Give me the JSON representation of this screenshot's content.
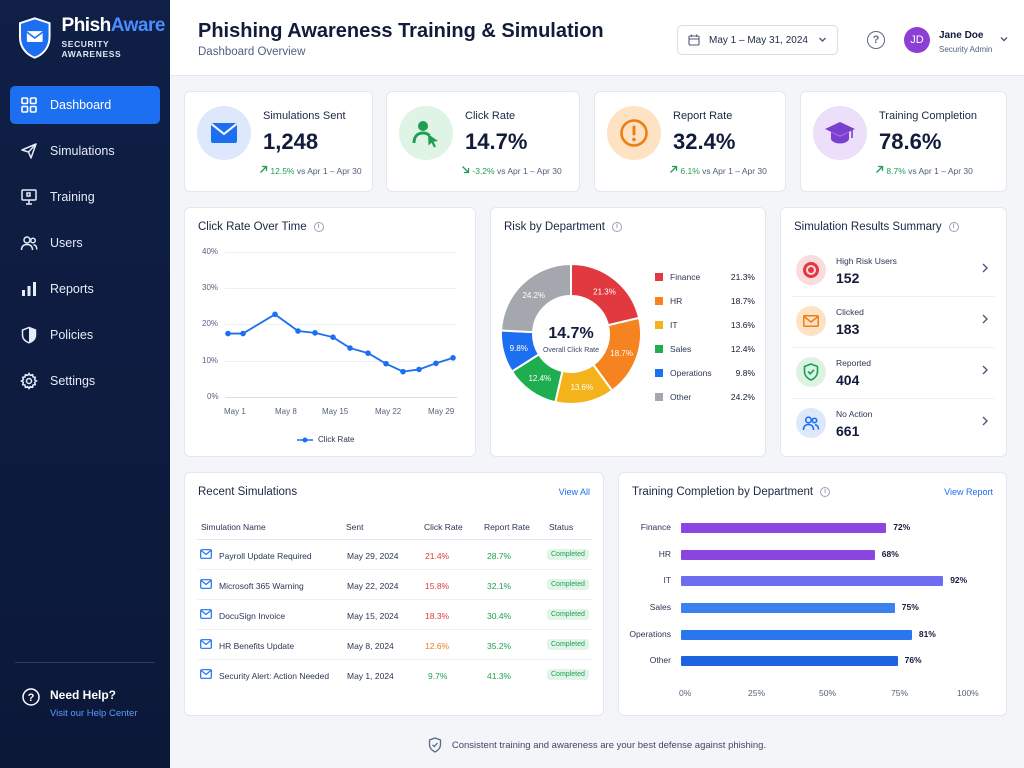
{
  "brand": {
    "name_part1": "Phish",
    "name_part2": "Aware",
    "tagline": "SECURITY AWARENESS",
    "icon": "shield-mail-icon"
  },
  "nav": [
    {
      "label": "Dashboard",
      "icon": "grid-icon",
      "active": true
    },
    {
      "label": "Simulations",
      "icon": "send-icon"
    },
    {
      "label": "Training",
      "icon": "monitor-icon"
    },
    {
      "label": "Users",
      "icon": "users-icon"
    },
    {
      "label": "Reports",
      "icon": "bar-chart-icon"
    },
    {
      "label": "Policies",
      "icon": "shield-icon"
    },
    {
      "label": "Settings",
      "icon": "gear-icon"
    }
  ],
  "help": {
    "title": "Need Help?",
    "link": "Visit our Help Center"
  },
  "header": {
    "title": "Phishing Awareness Training & Simulation",
    "subtitle": "Dashboard Overview",
    "date_range": "May 1 – May 31, 2024"
  },
  "user": {
    "initials": "JD",
    "name": "Jane Doe",
    "role": "Security Admin"
  },
  "kpis": [
    {
      "label": "Simulations Sent",
      "value": "1,248",
      "delta": "12.5%",
      "direction": "up",
      "compare": "vs Apr 1 – Apr 30",
      "icon": "mail-icon",
      "color": "#1d6ff2",
      "bg": "#dde8fb"
    },
    {
      "label": "Click Rate",
      "value": "14.7%",
      "delta": "-3.2%",
      "direction": "down",
      "compare": "vs Apr 1 – Apr 30",
      "icon": "user-click-icon",
      "color": "#1e9e52",
      "bg": "#e0f4e6"
    },
    {
      "label": "Report Rate",
      "value": "32.4%",
      "delta": "6.1%",
      "direction": "up",
      "compare": "vs Apr 1 – Apr 30",
      "icon": "alert-icon",
      "color": "#ee7d14",
      "bg": "#fde3c4"
    },
    {
      "label": "Training Completion",
      "value": "78.6%",
      "delta": "8.7%",
      "direction": "up",
      "compare": "vs Apr 1 – Apr 30",
      "icon": "graduation-cap-icon",
      "color": "#7b3fcf",
      "bg": "#ebdffa"
    }
  ],
  "click_rate_card": {
    "title": "Click Rate Over Time",
    "legend": "Click Rate"
  },
  "risk_card": {
    "title": "Risk by Department",
    "center_value": "14.7%",
    "center_label": "Overall Click Rate"
  },
  "summary": {
    "title": "Simulation Results Summary",
    "rows": [
      {
        "label": "High Risk Users",
        "value": "152",
        "icon": "target-icon",
        "color": "#e2383f",
        "bg": "#fbdcdc"
      },
      {
        "label": "Clicked",
        "value": "183",
        "icon": "mail-icon",
        "color": "#ee7d14",
        "bg": "#fde3c4"
      },
      {
        "label": "Reported",
        "value": "404",
        "icon": "shield-check-icon",
        "color": "#1e9e52",
        "bg": "#dcf3e3"
      },
      {
        "label": "No Action",
        "value": "661",
        "icon": "users-icon",
        "color": "#1d6ff2",
        "bg": "#dde8fb"
      }
    ]
  },
  "recent": {
    "title": "Recent Simulations",
    "view_all": "View All",
    "columns": [
      "Simulation Name",
      "Sent",
      "Click Rate",
      "Report Rate",
      "Status"
    ],
    "rows": [
      {
        "name": "Payroll Update Required",
        "sent": "May 29, 2024",
        "click": "21.4%",
        "report": "28.7%",
        "status": "Completed",
        "click_color": "#e2383f"
      },
      {
        "name": "Microsoft 365 Warning",
        "sent": "May 22, 2024",
        "click": "15.8%",
        "report": "32.1%",
        "status": "Completed",
        "click_color": "#e2383f"
      },
      {
        "name": "DocuSign Invoice",
        "sent": "May 15, 2024",
        "click": "18.3%",
        "report": "30.4%",
        "status": "Completed",
        "click_color": "#e2383f"
      },
      {
        "name": "HR Benefits Update",
        "sent": "May 8, 2024",
        "click": "12.6%",
        "report": "35.2%",
        "status": "Completed",
        "click_color": "#ee7d14"
      },
      {
        "name": "Security Alert: Action Needed",
        "sent": "May 1, 2024",
        "click": "9.7%",
        "report": "41.3%",
        "status": "Completed",
        "click_color": "#1e9e52"
      }
    ]
  },
  "training_card": {
    "title": "Training Completion by Department",
    "link": "View Report"
  },
  "footer": {
    "text": "Consistent training and awareness are your best defense against phishing."
  },
  "chart_data": [
    {
      "type": "line",
      "title": "Click Rate Over Time",
      "series": [
        {
          "name": "Click Rate",
          "values": [
            17.5,
            17.5,
            22.8,
            18.2,
            17.7,
            16.5,
            13.5,
            12.1,
            9.2,
            7.0,
            7.6,
            9.3,
            10.8
          ]
        }
      ],
      "x": [
        "May 1",
        "May 3",
        "May 8",
        "May 11",
        "May 13",
        "May 15",
        "May 17",
        "May 19",
        "May 22",
        "May 24",
        "May 26",
        "May 27",
        "May 29"
      ],
      "x_ticks": [
        "May 1",
        "May 8",
        "May 15",
        "May 22",
        "May 29"
      ],
      "y_ticks": [
        "0%",
        "10%",
        "20%",
        "30%",
        "40%"
      ],
      "ylim": [
        0,
        40
      ],
      "color": "#1d6ff2",
      "grid": true
    },
    {
      "type": "pie",
      "title": "Risk by Department",
      "categories": [
        "Finance",
        "HR",
        "IT",
        "Sales",
        "Operations",
        "Other"
      ],
      "values": [
        21.3,
        18.7,
        13.6,
        12.4,
        9.8,
        24.2
      ],
      "labels": [
        "21.3%",
        "18.7%",
        "13.6%",
        "12.4%",
        "9.8%",
        "24.2%"
      ],
      "colors": [
        "#e2383f",
        "#f58320",
        "#f4b21b",
        "#1fae4f",
        "#1d6ff2",
        "#a4a7ad"
      ]
    },
    {
      "type": "bar",
      "orientation": "horizontal",
      "title": "Training Completion by Department",
      "categories": [
        "Finance",
        "HR",
        "IT",
        "Sales",
        "Operations",
        "Other"
      ],
      "values": [
        72,
        68,
        92,
        75,
        81,
        76
      ],
      "labels": [
        "72%",
        "68%",
        "92%",
        "75%",
        "81%",
        "76%"
      ],
      "colors": [
        "#8b45e0",
        "#8b45e0",
        "#6e6cf0",
        "#3b82f0",
        "#2a76ee",
        "#1d62e0"
      ],
      "x_ticks": [
        "0%",
        "25%",
        "50%",
        "75%",
        "100%"
      ],
      "xlim": [
        0,
        100
      ]
    }
  ]
}
